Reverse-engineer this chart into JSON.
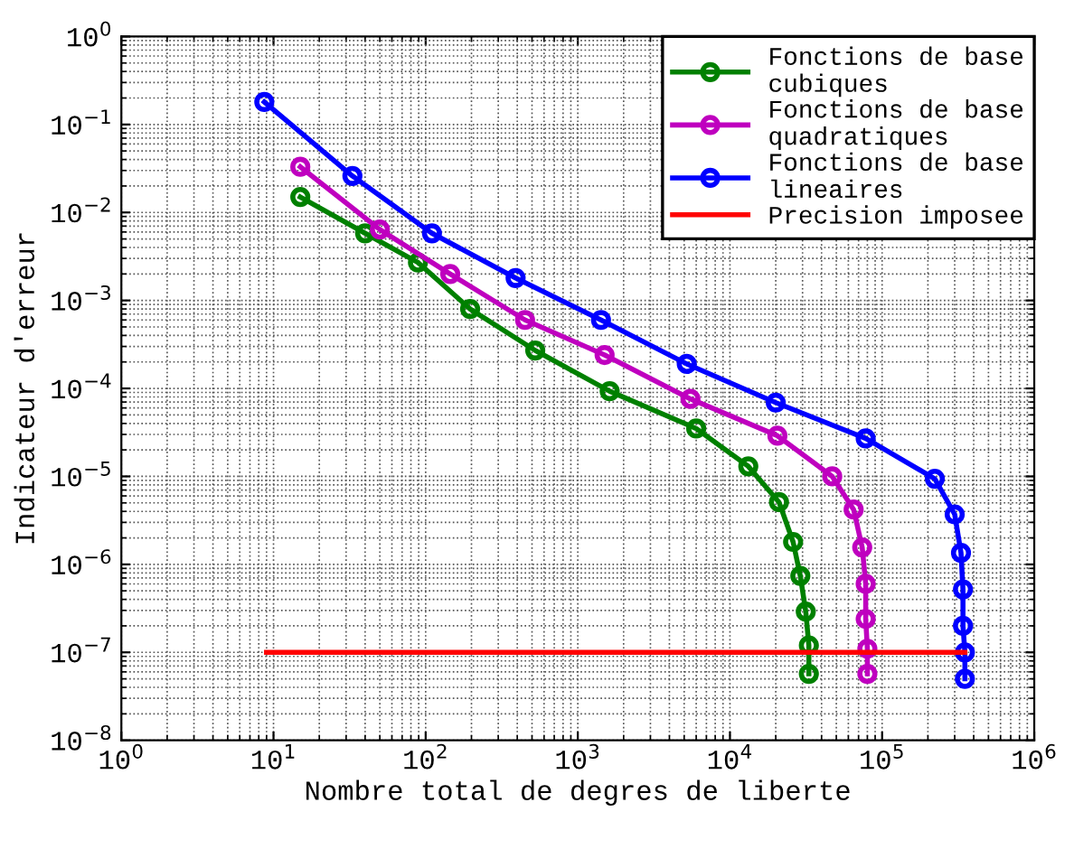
{
  "chart_data": {
    "type": "line",
    "xlabel": "Nombre total de degres de liberte",
    "ylabel": "Indicateur d'erreur",
    "log": "xy",
    "grid": true,
    "legend": "top right",
    "marker": "circle",
    "line_style": "solid",
    "xlim": [
      1,
      1000000
    ],
    "xticks": [
      {
        "value": 1,
        "label": "10$^{0}$"
      },
      {
        "value": 10,
        "label": "10$^{1}$"
      },
      {
        "value": 100,
        "label": "10$^{2}$"
      },
      {
        "value": 1000,
        "label": "10$^{3}$"
      },
      {
        "value": 10000,
        "label": "10$^{4}$"
      },
      {
        "value": 100000,
        "label": "10$^{5}$"
      },
      {
        "value": 1000000,
        "label": "10$^{6}$"
      }
    ],
    "ylim": [
      1e-08,
      1
    ],
    "yticks": [
      {
        "value": 1e-08,
        "label": "10$^{−8}$"
      },
      {
        "value": 1e-07,
        "label": "10$^{−7}$"
      },
      {
        "value": 1e-06,
        "label": "10$^{−6}$"
      },
      {
        "value": 1e-05,
        "label": "10$^{−5}$"
      },
      {
        "value": 0.0001,
        "label": "10$^{−4}$"
      },
      {
        "value": 0.001,
        "label": "10$^{−3}$"
      },
      {
        "value": 0.01,
        "label": "10$^{−2}$"
      },
      {
        "value": 0.1,
        "label": "10$^{−1}$"
      },
      {
        "value": 1,
        "label": "10$^{0}$"
      }
    ],
    "series": [
      {
        "name": "Fonctions de base\ncubiques",
        "color": "#008000",
        "x": [
          15,
          40,
          89,
          196,
          525,
          1620,
          6000,
          13200,
          21000,
          26000,
          29000,
          31500,
          33000,
          33000
        ],
        "values": [
          0.015,
          0.0058,
          0.0027,
          0.0008,
          0.00027,
          9.3e-05,
          3.5e-05,
          1.3e-05,
          5.1e-06,
          1.8e-06,
          7.4e-07,
          2.9e-07,
          1.2e-07,
          5.7e-08
        ]
      },
      {
        "name": "Fonctions de base\nquadratiques",
        "color": "#bf00bf",
        "x": [
          15,
          50,
          145,
          450,
          1500,
          5500,
          20500,
          47000,
          65000,
          74000,
          78000,
          78000,
          80000,
          80000
        ],
        "values": [
          0.033,
          0.0064,
          0.002,
          0.0006,
          0.00024,
          7.6e-05,
          2.9e-05,
          1e-05,
          4.2e-06,
          1.56e-06,
          6e-07,
          2.4e-07,
          1.1e-07,
          5.7e-08
        ]
      },
      {
        "name": "Fonctions de base\nlineaires",
        "color": "#0000ff",
        "x": [
          8.7,
          33,
          110,
          390,
          1420,
          5200,
          20000,
          78000,
          222000,
          300000,
          330000,
          340000,
          340000,
          350000,
          350000
        ],
        "values": [
          0.18,
          0.026,
          0.0058,
          0.0018,
          0.0006,
          0.00019,
          6.9e-05,
          2.7e-05,
          9.4e-06,
          3.7e-06,
          1.35e-06,
          5.2e-07,
          2e-07,
          1e-07,
          5e-08
        ]
      },
      {
        "name": "Precision imposee",
        "color": "#ff0000",
        "marker": "none",
        "x": [
          9,
          350000
        ],
        "values": [
          1e-07,
          1e-07
        ]
      }
    ]
  }
}
